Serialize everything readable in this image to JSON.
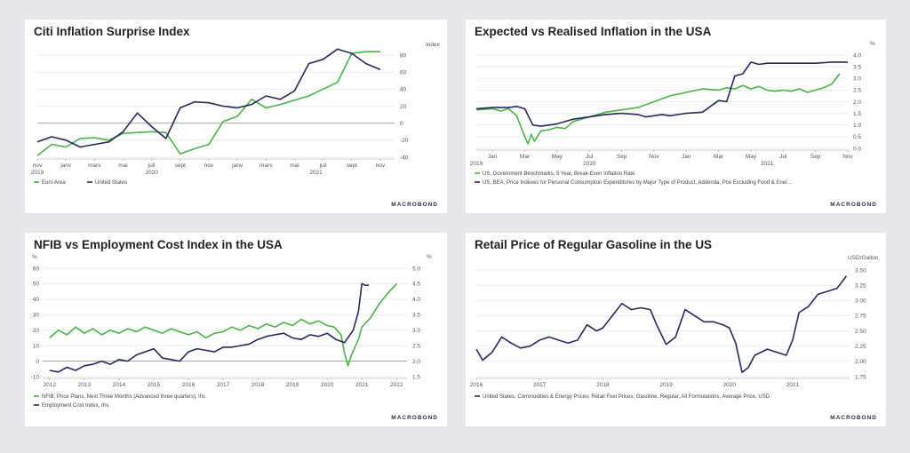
{
  "brand": "MACROBOND",
  "colors": {
    "navy": "#27285b",
    "green": "#4db04a"
  },
  "chart_data": [
    {
      "id": "citi",
      "type": "line",
      "title": "Citi Inflation Surprise Index",
      "unit_right": "Index",
      "ylim": [
        -40,
        80
      ],
      "yticks": [
        80,
        60,
        40,
        20,
        0,
        -20,
        -40
      ],
      "ytick_labels": [
        "80",
        "60",
        "40",
        "20",
        "0",
        "-20",
        "-40"
      ],
      "xlim": [
        0,
        25
      ],
      "xticks": [
        {
          "x": 0,
          "label": "nov"
        },
        {
          "x": 2,
          "label": "janv"
        },
        {
          "x": 4,
          "label": "mars"
        },
        {
          "x": 6,
          "label": "mai"
        },
        {
          "x": 8,
          "label": "juil"
        },
        {
          "x": 10,
          "label": "sept"
        },
        {
          "x": 12,
          "label": "nov"
        },
        {
          "x": 14,
          "label": "janv"
        },
        {
          "x": 16,
          "label": "mars"
        },
        {
          "x": 18,
          "label": "mai"
        },
        {
          "x": 20,
          "label": "juil"
        },
        {
          "x": 22,
          "label": "sept"
        },
        {
          "x": 24,
          "label": "nov"
        }
      ],
      "year_labels": [
        {
          "x": 0,
          "label": "2019"
        },
        {
          "x": 8,
          "label": "2020"
        },
        {
          "x": 19.5,
          "label": "2021"
        }
      ],
      "series": [
        {
          "name": "Euro Area",
          "color": "#4db04a",
          "x": [
            0,
            1,
            2,
            3,
            4,
            5,
            6,
            7,
            8,
            9,
            10,
            11,
            12,
            13,
            14,
            15,
            16,
            17,
            18,
            19,
            20,
            21,
            22,
            23,
            24
          ],
          "y": [
            -38,
            -25,
            -28,
            -18,
            -17,
            -20,
            -12,
            -11,
            -10,
            -11,
            -36,
            -30,
            -25,
            2,
            8,
            28,
            18,
            22,
            27,
            32,
            40,
            48,
            82,
            84,
            84
          ]
        },
        {
          "name": "United States",
          "color": "#27285b",
          "x": [
            0,
            1,
            2,
            3,
            4,
            5,
            6,
            7,
            8,
            9,
            10,
            11,
            12,
            13,
            14,
            15,
            16,
            17,
            18,
            19,
            20,
            21,
            22,
            23,
            24
          ],
          "y": [
            -22,
            -16,
            -20,
            -28,
            -25,
            -22,
            -10,
            12,
            -4,
            -18,
            18,
            25,
            24,
            20,
            18,
            22,
            32,
            28,
            38,
            70,
            75,
            87,
            82,
            70,
            63
          ]
        }
      ]
    },
    {
      "id": "expected",
      "type": "line",
      "title": "Expected vs Realised Inflation in the USA",
      "unit_right": "%",
      "ylim": [
        0,
        4
      ],
      "yticks": [
        4,
        3.5,
        3,
        2.5,
        2,
        1.5,
        1,
        0.5,
        0
      ],
      "ytick_labels": [
        "4.0",
        "3.5",
        "3.0",
        "2.5",
        "2.0",
        "1.5",
        "1.0",
        "0.5",
        "0.0"
      ],
      "xlim": [
        0,
        23
      ],
      "xticks": [
        {
          "x": 1,
          "label": "Jan"
        },
        {
          "x": 3,
          "label": "Mar"
        },
        {
          "x": 5,
          "label": "May"
        },
        {
          "x": 7,
          "label": "Jul"
        },
        {
          "x": 9,
          "label": "Sep"
        },
        {
          "x": 11,
          "label": "Nov"
        },
        {
          "x": 13,
          "label": "Jan"
        },
        {
          "x": 15,
          "label": "Mar"
        },
        {
          "x": 17,
          "label": "May"
        },
        {
          "x": 19,
          "label": "Jul"
        },
        {
          "x": 21,
          "label": "Sep"
        },
        {
          "x": 23,
          "label": "Nov"
        }
      ],
      "year_labels": [
        {
          "x": 0,
          "label": "2019"
        },
        {
          "x": 7,
          "label": "2020"
        },
        {
          "x": 18,
          "label": "2021"
        }
      ],
      "series": [
        {
          "name": "US, Government Benchmarks, 5 Year, Break-Even Inflation Rate",
          "color": "#4db04a",
          "x": [
            0,
            1,
            1.5,
            2,
            2.5,
            3,
            3.2,
            3.4,
            3.6,
            4,
            4.5,
            5,
            5.5,
            6,
            7,
            8,
            9,
            10,
            11,
            12,
            13,
            14,
            15,
            15.5,
            16,
            16.5,
            17,
            17.5,
            18,
            18.5,
            19,
            19.5,
            20,
            20.5,
            21,
            21.5,
            22,
            22.5
          ],
          "y": [
            1.65,
            1.7,
            1.6,
            1.7,
            1.4,
            0.5,
            0.2,
            0.6,
            0.3,
            0.75,
            0.8,
            0.9,
            0.85,
            1.15,
            1.35,
            1.55,
            1.65,
            1.75,
            2.0,
            2.25,
            2.4,
            2.55,
            2.5,
            2.6,
            2.55,
            2.7,
            2.55,
            2.65,
            2.5,
            2.45,
            2.5,
            2.45,
            2.55,
            2.4,
            2.5,
            2.6,
            2.75,
            3.2
          ]
        },
        {
          "name": "US, BEA, Price Indexes for Personal Consumption Expenditures by Major Type of Product, Addenda, Pce Excluding Food & Ener...",
          "color": "#27285b",
          "x": [
            0,
            1,
            2,
            2.5,
            3,
            3.5,
            4,
            5,
            6,
            7,
            8,
            9,
            10,
            10.5,
            11,
            11.5,
            12,
            13,
            14,
            15,
            15.5,
            16,
            16.5,
            17,
            17.5,
            18,
            19,
            20,
            21,
            22,
            23
          ],
          "y": [
            1.7,
            1.75,
            1.75,
            1.8,
            1.7,
            1.0,
            0.95,
            1.05,
            1.25,
            1.35,
            1.45,
            1.5,
            1.45,
            1.35,
            1.4,
            1.45,
            1.4,
            1.5,
            1.55,
            2.05,
            2.0,
            3.1,
            3.2,
            3.7,
            3.6,
            3.65,
            3.65,
            3.65,
            3.65,
            3.7,
            3.7
          ]
        }
      ]
    },
    {
      "id": "nfib",
      "type": "line",
      "title": "NFIB vs Employment Cost Index in the USA",
      "unit_left": "%",
      "unit_right": "%",
      "ylim": [
        -10,
        60
      ],
      "yticks": [
        60,
        50,
        40,
        30,
        20,
        10,
        0,
        -10
      ],
      "ytick_labels": [
        "60",
        "50",
        "40",
        "30",
        "20",
        "10",
        "0",
        "-10"
      ],
      "ylim_right": [
        1.5,
        5.0
      ],
      "yticks_right": [
        5.0,
        4.5,
        4.0,
        3.5,
        3.0,
        2.5,
        2.0,
        1.5
      ],
      "ytick_labels_right": [
        "5.0",
        "4.5",
        "4.0",
        "3.5",
        "3.0",
        "2.5",
        "2.0",
        "1.5"
      ],
      "xlim": [
        2011.8,
        2022.3
      ],
      "xticks": [
        {
          "x": 2012,
          "label": "2012"
        },
        {
          "x": 2013,
          "label": "2013"
        },
        {
          "x": 2014,
          "label": "2014"
        },
        {
          "x": 2015,
          "label": "2015"
        },
        {
          "x": 2016,
          "label": "2016"
        },
        {
          "x": 2017,
          "label": "2017"
        },
        {
          "x": 2018,
          "label": "2018"
        },
        {
          "x": 2019,
          "label": "2019"
        },
        {
          "x": 2020,
          "label": "2020"
        },
        {
          "x": 2021,
          "label": "2021"
        },
        {
          "x": 2022,
          "label": "2022"
        }
      ],
      "series": [
        {
          "name": "NFIB, Price Plans, Next Three Months (Advanced three quarters), lhs",
          "color": "#4db04a",
          "axis": "left",
          "x": [
            2012,
            2012.25,
            2012.5,
            2012.75,
            2013,
            2013.25,
            2013.5,
            2013.75,
            2014,
            2014.25,
            2014.5,
            2014.75,
            2015,
            2015.25,
            2015.5,
            2015.75,
            2016,
            2016.25,
            2016.5,
            2016.75,
            2017,
            2017.25,
            2017.5,
            2017.75,
            2018,
            2018.25,
            2018.5,
            2018.75,
            2019,
            2019.25,
            2019.5,
            2019.75,
            2020,
            2020.2,
            2020.4,
            2020.5,
            2020.6,
            2020.7,
            2020.9,
            2021,
            2021.25,
            2021.5,
            2021.75,
            2022
          ],
          "y": [
            15,
            20,
            17,
            22,
            18,
            21,
            17,
            20,
            18,
            21,
            19,
            22,
            20,
            18,
            21,
            19,
            17,
            19,
            15,
            18,
            19,
            22,
            20,
            23,
            21,
            24,
            22,
            25,
            23,
            27,
            24,
            26,
            23,
            22,
            17,
            5,
            -3,
            4,
            14,
            22,
            28,
            37,
            44,
            50
          ]
        },
        {
          "name": "Employment Cost Index, rhs",
          "color": "#27285b",
          "axis": "right",
          "x": [
            2012,
            2012.25,
            2012.5,
            2012.75,
            2013,
            2013.25,
            2013.5,
            2013.75,
            2014,
            2014.25,
            2014.5,
            2014.75,
            2015,
            2015.25,
            2015.5,
            2015.75,
            2016,
            2016.25,
            2016.5,
            2016.75,
            2017,
            2017.25,
            2017.5,
            2017.75,
            2018,
            2018.25,
            2018.5,
            2018.75,
            2019,
            2019.25,
            2019.5,
            2019.75,
            2020,
            2020.25,
            2020.5,
            2020.75,
            2020.9,
            2021,
            2021.1,
            2021.2
          ],
          "y": [
            1.7,
            1.65,
            1.8,
            1.7,
            1.85,
            1.9,
            2.0,
            1.9,
            2.05,
            2.0,
            2.2,
            2.3,
            2.4,
            2.1,
            2.05,
            2.0,
            2.3,
            2.4,
            2.35,
            2.3,
            2.45,
            2.45,
            2.5,
            2.55,
            2.7,
            2.8,
            2.85,
            2.9,
            2.75,
            2.7,
            2.85,
            2.8,
            2.9,
            2.7,
            2.6,
            3.0,
            3.6,
            4.5,
            4.45,
            4.45
          ]
        }
      ]
    },
    {
      "id": "gasoline",
      "type": "line",
      "title": "Retail Price of Regular Gasoline in the US",
      "unit_right": "USD/Gallon",
      "ylim": [
        1.75,
        3.5
      ],
      "yticks": [
        3.5,
        3.25,
        3.0,
        2.75,
        2.5,
        2.25,
        2.0,
        1.75
      ],
      "ytick_labels": [
        "3.50",
        "3.25",
        "3.00",
        "2.75",
        "2.50",
        "2.25",
        "2.00",
        "1.75"
      ],
      "xlim": [
        2016,
        2021.9
      ],
      "xticks": [
        {
          "x": 2016,
          "label": "2016"
        },
        {
          "x": 2017,
          "label": "2017"
        },
        {
          "x": 2018,
          "label": "2018"
        },
        {
          "x": 2019,
          "label": "2019"
        },
        {
          "x": 2020,
          "label": "2020"
        },
        {
          "x": 2021,
          "label": "2021"
        }
      ],
      "series": [
        {
          "name": "United States, Commodities & Energy Prices, Retail Fuel Prices, Gasoline, Regular, All Formulations, Average Price, USD",
          "color": "#27285b",
          "x": [
            2016,
            2016.1,
            2016.25,
            2016.4,
            2016.55,
            2016.7,
            2016.85,
            2017,
            2017.15,
            2017.3,
            2017.45,
            2017.6,
            2017.75,
            2017.9,
            2018,
            2018.15,
            2018.3,
            2018.45,
            2018.6,
            2018.75,
            2018.85,
            2019,
            2019.15,
            2019.3,
            2019.45,
            2019.6,
            2019.75,
            2019.9,
            2020,
            2020.1,
            2020.2,
            2020.3,
            2020.4,
            2020.5,
            2020.6,
            2020.75,
            2020.9,
            2021,
            2021.1,
            2021.25,
            2021.4,
            2021.55,
            2021.7,
            2021.85
          ],
          "y": [
            2.2,
            2.02,
            2.15,
            2.4,
            2.3,
            2.22,
            2.25,
            2.35,
            2.4,
            2.35,
            2.3,
            2.35,
            2.6,
            2.5,
            2.55,
            2.75,
            2.95,
            2.85,
            2.88,
            2.85,
            2.6,
            2.28,
            2.4,
            2.85,
            2.75,
            2.65,
            2.65,
            2.6,
            2.55,
            2.3,
            1.82,
            1.9,
            2.1,
            2.15,
            2.2,
            2.15,
            2.1,
            2.35,
            2.8,
            2.9,
            3.1,
            3.15,
            3.2,
            3.4
          ]
        }
      ]
    }
  ]
}
